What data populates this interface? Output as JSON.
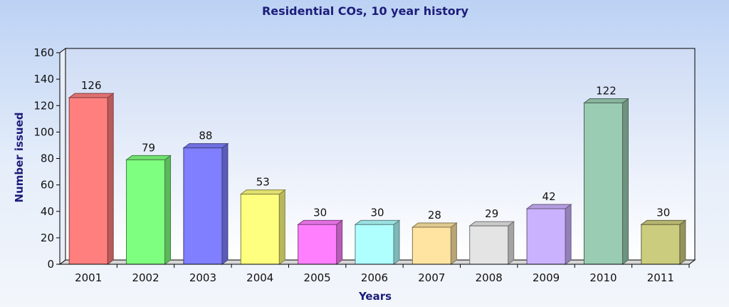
{
  "chart_data": {
    "type": "bar",
    "title": "Residential COs, 10 year history",
    "xlabel": "Years",
    "ylabel": "Number issued",
    "categories": [
      "2001",
      "2002",
      "2003",
      "2004",
      "2005",
      "2006",
      "2007",
      "2008",
      "2009",
      "2010",
      "2011"
    ],
    "values": [
      126,
      79,
      88,
      53,
      30,
      30,
      28,
      29,
      42,
      122,
      30
    ],
    "value_labels": [
      "126",
      "79",
      "88",
      "53",
      "30",
      "30",
      "28",
      "29",
      "42",
      "122",
      "30"
    ],
    "colors": [
      "#ff7f7f",
      "#7fff7f",
      "#7f7fff",
      "#ffff7f",
      "#ff7fff",
      "#afffff",
      "#ffe4a1",
      "#e4e4e4",
      "#cbb2ff",
      "#99ccb2",
      "#cccc7f"
    ],
    "ylim": [
      0,
      160
    ],
    "yticks": [
      0,
      20,
      40,
      60,
      80,
      100,
      120,
      140,
      160
    ],
    "ytick_labels": [
      "0",
      "20",
      "40",
      "60",
      "80",
      "100",
      "120",
      "140",
      "160"
    ],
    "grid": false,
    "legend": "none",
    "style": "3d"
  }
}
